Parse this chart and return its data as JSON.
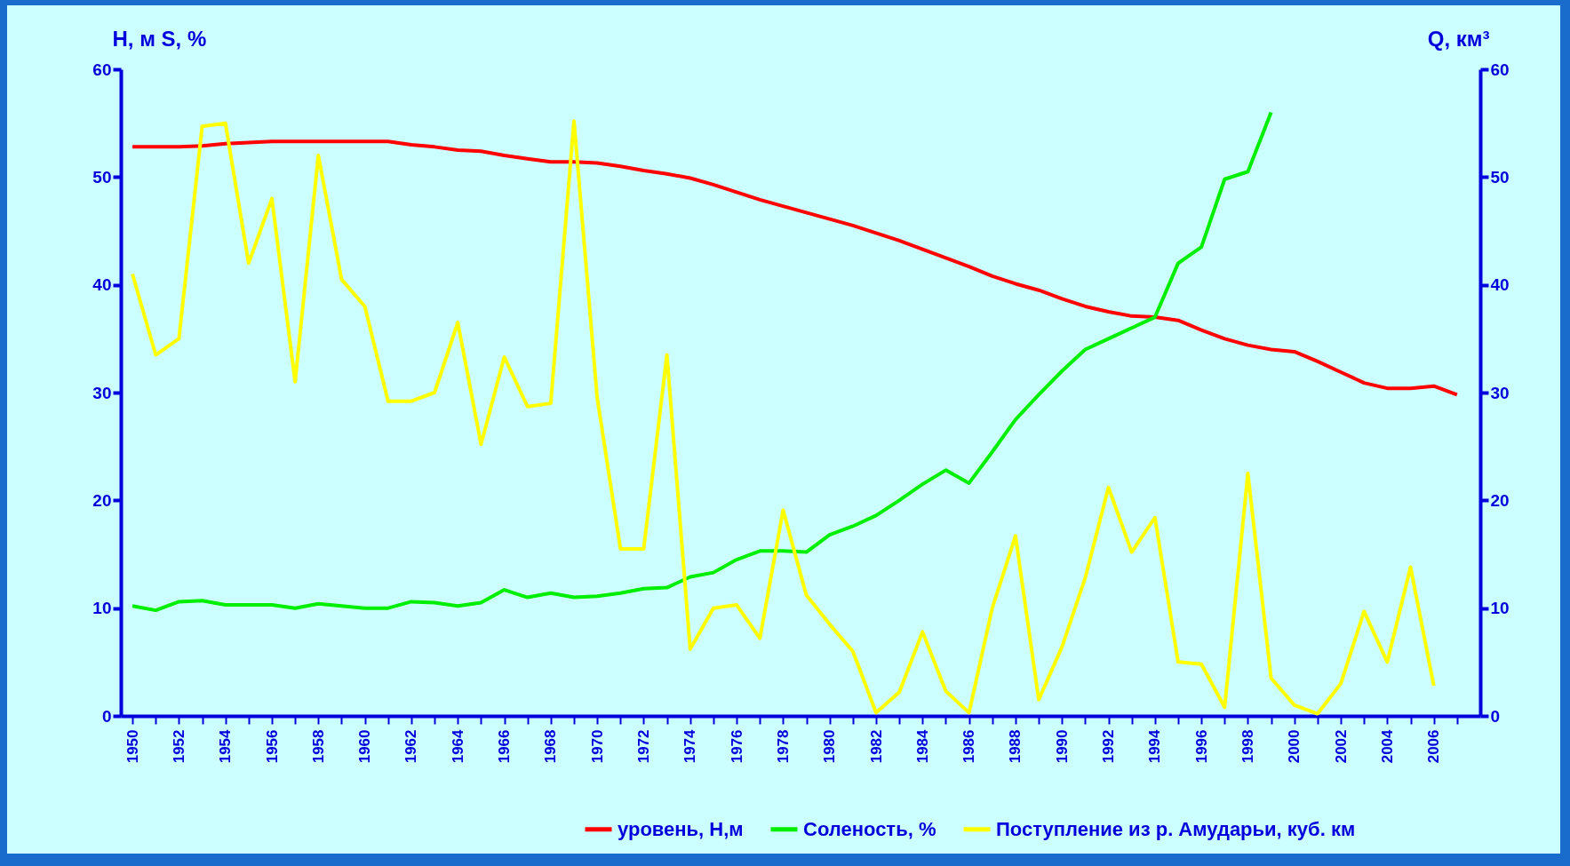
{
  "chart_data": {
    "type": "line",
    "ylabel": "H, м    S, %",
    "y2label": "Q, км³",
    "x": [
      1950,
      1951,
      1952,
      1953,
      1954,
      1955,
      1956,
      1957,
      1958,
      1959,
      1960,
      1961,
      1962,
      1963,
      1964,
      1965,
      1966,
      1967,
      1968,
      1969,
      1970,
      1971,
      1972,
      1973,
      1974,
      1975,
      1976,
      1977,
      1978,
      1979,
      1980,
      1981,
      1982,
      1983,
      1984,
      1985,
      1986,
      1987,
      1988,
      1989,
      1990,
      1991,
      1992,
      1993,
      1994,
      1995,
      1996,
      1997,
      1998,
      1999,
      2000,
      2001,
      2002,
      2003,
      2004,
      2005,
      2006,
      2007
    ],
    "series": [
      {
        "name": "уровень, Н,м",
        "color": "#ff0000",
        "values": [
          52.8,
          52.8,
          52.8,
          52.9,
          53.1,
          53.2,
          53.3,
          53.3,
          53.3,
          53.3,
          53.3,
          53.3,
          53.0,
          52.8,
          52.5,
          52.4,
          52.0,
          51.7,
          51.4,
          51.4,
          51.3,
          51.0,
          50.6,
          50.3,
          49.9,
          49.3,
          48.6,
          47.9,
          47.3,
          46.7,
          46.1,
          45.5,
          44.8,
          44.1,
          43.3,
          42.5,
          41.7,
          40.8,
          40.1,
          39.5,
          38.7,
          38.0,
          37.5,
          37.1,
          37.0,
          36.7,
          35.8,
          35.0,
          34.4,
          34.0,
          33.8,
          32.9,
          31.9,
          30.9,
          30.4,
          30.4,
          30.6,
          29.8
        ]
      },
      {
        "name": "Соленость, %",
        "color": "#00ee00",
        "values": [
          10.2,
          9.8,
          10.6,
          10.7,
          10.3,
          10.3,
          10.3,
          10.0,
          10.4,
          10.2,
          10.0,
          10.0,
          10.6,
          10.5,
          10.2,
          10.5,
          11.7,
          11.0,
          11.4,
          11.0,
          11.1,
          11.4,
          11.8,
          11.9,
          12.9,
          13.3,
          14.5,
          15.3,
          15.3,
          15.2,
          16.8,
          17.6,
          18.6,
          20.0,
          21.5,
          22.8,
          21.6,
          24.5,
          27.5,
          29.8,
          32.0,
          34.0,
          35.0,
          36.0,
          37.0,
          42.0,
          43.5,
          49.8,
          50.5,
          56.0,
          null,
          null,
          null,
          null,
          null,
          null,
          null,
          null
        ]
      },
      {
        "name": "Поступление из р. Амударьи, куб. км",
        "color": "#ffff00",
        "axis": "y2",
        "values": [
          41,
          33.5,
          35,
          54.7,
          55,
          42,
          48,
          31,
          52,
          40.5,
          38,
          29.2,
          29.2,
          30,
          36.5,
          25.2,
          33.3,
          28.7,
          29,
          55.2,
          29.5,
          15.5,
          15.5,
          33.5,
          6.2,
          10,
          10.3,
          7.2,
          19.1,
          11.2,
          8.5,
          6,
          0.3,
          2.2,
          7.8,
          2.3,
          0.3,
          10,
          16.7,
          1.5,
          6.4,
          12.8,
          21.2,
          15.2,
          18.4,
          5.0,
          4.8,
          0.8,
          22.5,
          3.5,
          1.0,
          0.2,
          3.0,
          9.7,
          5.0,
          13.8,
          2.8,
          null
        ]
      }
    ],
    "xlim": [
      1949.5,
      2008
    ],
    "xticks": [
      1950,
      {
        "value": 1951,
        "label": null
      },
      1952,
      {
        "value": 1953,
        "label": null
      },
      1954,
      {
        "value": 1955,
        "label": null
      },
      1956,
      {
        "value": 1957,
        "label": null
      },
      1958,
      {
        "value": 1959,
        "label": null
      },
      1960,
      {
        "value": 1961,
        "label": null
      },
      1962,
      {
        "value": 1963,
        "label": null
      },
      1964,
      {
        "value": 1965,
        "label": null
      },
      1966,
      {
        "value": 1967,
        "label": null
      },
      1968,
      {
        "value": 1969,
        "label": null
      },
      1970,
      {
        "value": 1971,
        "label": null
      },
      1972,
      {
        "value": 1973,
        "label": null
      },
      1974,
      {
        "value": 1975,
        "label": null
      },
      1976,
      {
        "value": 1977,
        "label": null
      },
      1978,
      {
        "value": 1979,
        "label": null
      },
      1980,
      {
        "value": 1981,
        "label": null
      },
      1982,
      {
        "value": 1983,
        "label": null
      },
      1984,
      {
        "value": 1985,
        "label": null
      },
      1986,
      {
        "value": 1987,
        "label": null
      },
      1988,
      {
        "value": 1989,
        "label": null
      },
      1990,
      {
        "value": 1991,
        "label": null
      },
      1992,
      {
        "value": 1993,
        "label": null
      },
      1994,
      {
        "value": 1995,
        "label": null
      },
      1996,
      {
        "value": 1997,
        "label": null
      },
      1998,
      {
        "value": 1999,
        "label": null
      },
      2000,
      {
        "value": 2001,
        "label": null
      },
      2002,
      {
        "value": 2003,
        "label": null
      },
      2004,
      {
        "value": 2005,
        "label": null
      },
      2006,
      {
        "value": 2007,
        "label": null
      }
    ],
    "ylim": [
      0,
      60
    ],
    "yticks": [
      0,
      10,
      20,
      30,
      40,
      50,
      60
    ],
    "y2lim": [
      0,
      60
    ],
    "y2ticks": [
      0,
      10,
      20,
      30,
      40,
      50,
      60
    ],
    "grid": false,
    "legend": "bottom right",
    "marker": "none",
    "line_style": "solid"
  }
}
